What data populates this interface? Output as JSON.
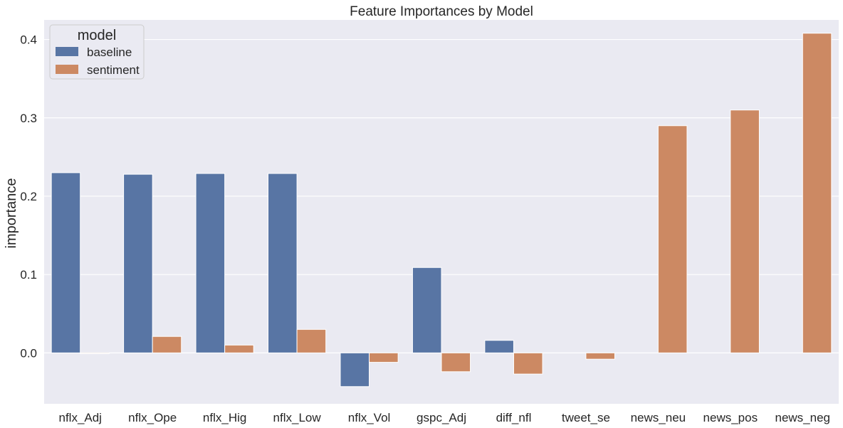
{
  "chart_data": {
    "type": "bar",
    "title": "Feature Importances by Model",
    "xlabel": "",
    "ylabel": "importance",
    "ylim": [
      -0.065,
      0.425
    ],
    "yticks": [
      0.0,
      0.1,
      0.2,
      0.3,
      0.4
    ],
    "ytick_labels": [
      "0.0",
      "0.1",
      "0.2",
      "0.3",
      "0.4"
    ],
    "grid": true,
    "legend": {
      "title": "model",
      "position": "top-left"
    },
    "categories": [
      "nflx_Adj",
      "nflx_Ope",
      "nflx_Hig",
      "nflx_Low",
      "nflx_Vol",
      "gspc_Adj",
      "diff_nfl",
      "tweet_se",
      "news_neu",
      "news_pos",
      "news_neg"
    ],
    "series": [
      {
        "name": "baseline",
        "color": "#5875a4",
        "values": [
          0.23,
          0.228,
          0.229,
          0.229,
          -0.043,
          0.109,
          0.016,
          null,
          null,
          null,
          null
        ]
      },
      {
        "name": "sentiment",
        "color": "#cc8963",
        "values": [
          -0.001,
          0.021,
          0.01,
          0.03,
          -0.012,
          -0.024,
          -0.027,
          -0.008,
          0.29,
          0.31,
          0.408
        ]
      }
    ]
  }
}
